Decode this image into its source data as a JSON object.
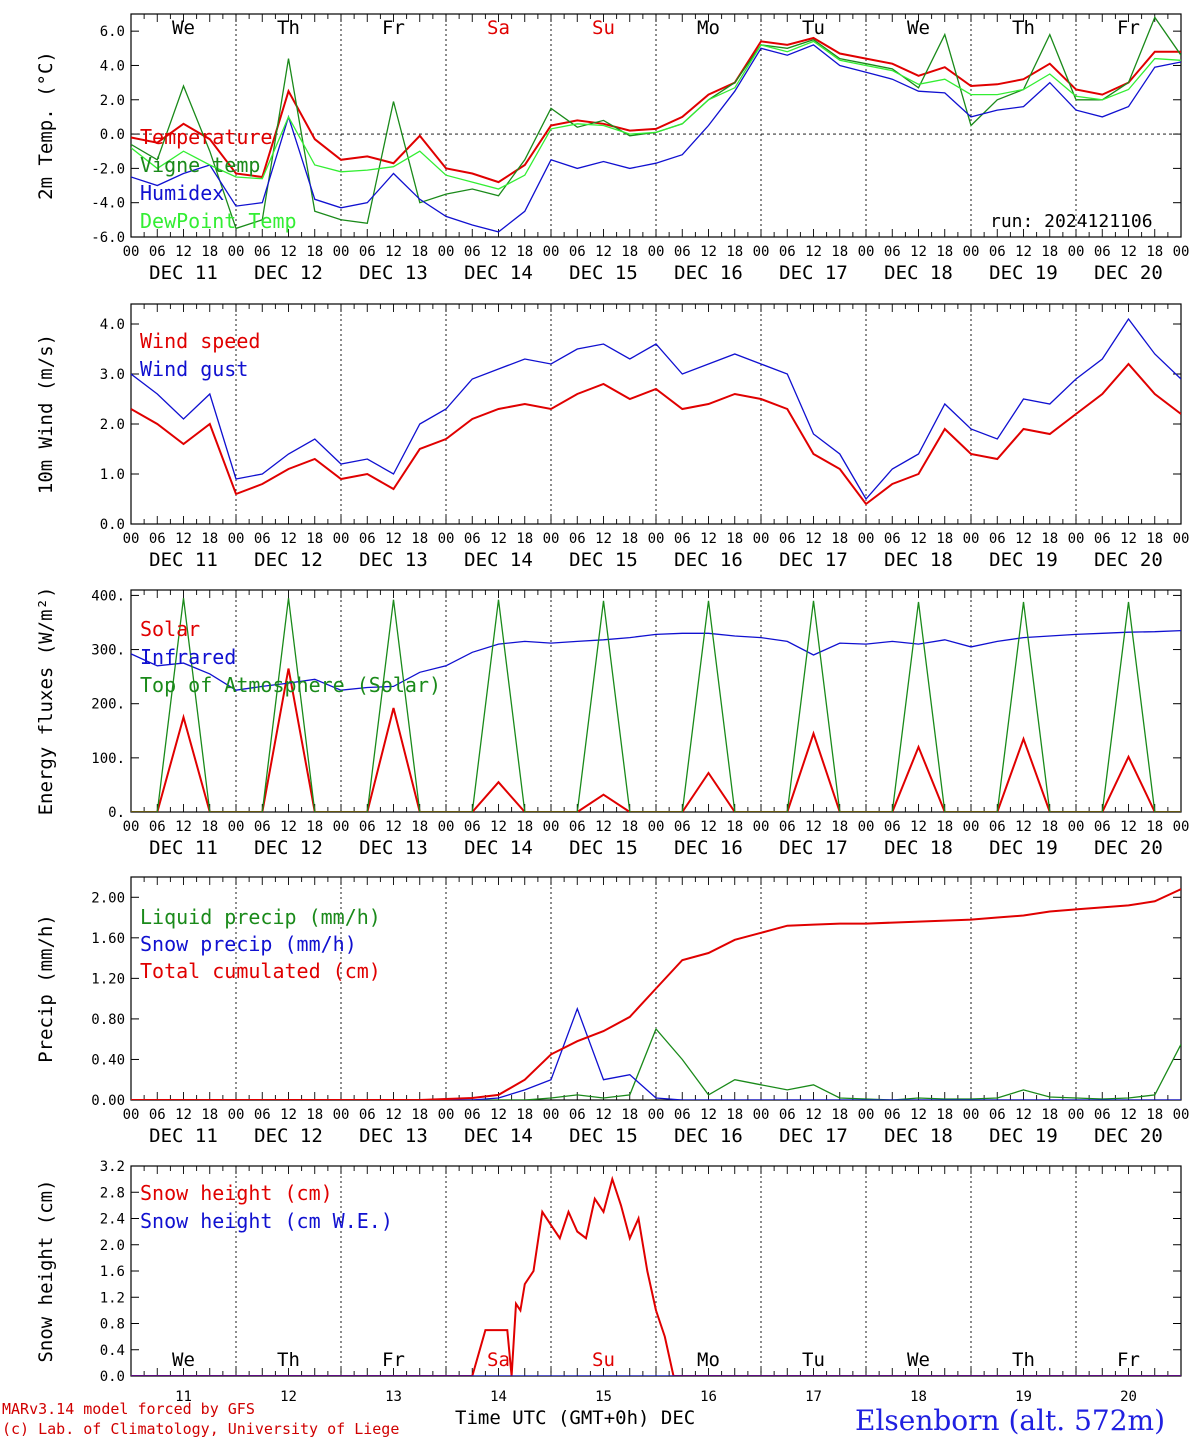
{
  "colors": {
    "red": "#e00000",
    "green": "#1a8a1a",
    "blue": "#1010d0",
    "light_green": "#33ee33",
    "weekend": "#e00000"
  },
  "days": {
    "weekday_labels": [
      "We",
      "Th",
      "Fr",
      "Sa",
      "Su",
      "Mo",
      "Tu",
      "We",
      "Th",
      "Fr"
    ],
    "weekend_flags": [
      false,
      false,
      false,
      true,
      true,
      false,
      false,
      false,
      false,
      false
    ],
    "date_labels": [
      "DEC 11",
      "DEC 12",
      "DEC 13",
      "DEC 14",
      "DEC 15",
      "DEC 16",
      "DEC 17",
      "DEC 18",
      "DEC 19",
      "DEC 20"
    ],
    "hour_labels": [
      "00",
      "06",
      "12",
      "18"
    ],
    "end_hour_label": "00",
    "day_numbers": [
      "11",
      "12",
      "13",
      "14",
      "15",
      "16",
      "17",
      "18",
      "19",
      "20"
    ]
  },
  "run_label": "run: 2024121106",
  "footer": {
    "model": "MARv3.14 model forced by GFS",
    "lab": "(c) Lab. of Climatology, University of Liege",
    "time_axis": "Time UTC (GMT+0h) DEC",
    "station": "Elsenborn (alt. 572m)"
  },
  "chart_data": [
    {
      "type": "line",
      "ylabel": "2m Temp. (°C)",
      "ylim": [
        -6,
        7
      ],
      "yticks": [
        "6.0",
        "4.0",
        "2.0",
        "0.0",
        "-2.0",
        "-4.0",
        "-6.0"
      ],
      "ytick_values": [
        6,
        4,
        2,
        0,
        -2,
        -4,
        -6
      ],
      "zero_line": true,
      "x": [
        0,
        6,
        12,
        18,
        24,
        30,
        36,
        42,
        48,
        54,
        60,
        66,
        72,
        78,
        84,
        90,
        96,
        102,
        108,
        114,
        120,
        126,
        132,
        138,
        144,
        150,
        156,
        162,
        168,
        174,
        180,
        186,
        192,
        198,
        204,
        210,
        216,
        222,
        228,
        234,
        240
      ],
      "series": [
        {
          "name": "Temperature",
          "color": "red",
          "values": [
            -0.2,
            -0.5,
            0.6,
            -0.3,
            -2.3,
            -2.5,
            2.5,
            -0.3,
            -1.5,
            -1.3,
            -1.7,
            -0.1,
            -2.0,
            -2.3,
            -2.8,
            -1.8,
            0.5,
            0.8,
            0.6,
            0.2,
            0.3,
            1.0,
            2.3,
            3.0,
            5.4,
            5.2,
            5.6,
            4.7,
            4.4,
            4.1,
            3.4,
            3.9,
            2.8,
            2.9,
            3.2,
            4.1,
            2.6,
            2.3,
            3.0,
            4.8,
            4.8
          ]
        },
        {
          "name": "Vigne temp",
          "color": "green",
          "values": [
            -0.6,
            -1.5,
            2.8,
            -1.0,
            -5.5,
            -5.0,
            4.4,
            -4.5,
            -5.0,
            -5.2,
            1.9,
            -4.0,
            -3.5,
            -3.2,
            -3.6,
            -1.5,
            1.5,
            0.4,
            0.8,
            -0.1,
            0.1,
            0.6,
            2.0,
            3.0,
            5.2,
            5.0,
            5.5,
            4.4,
            4.1,
            3.8,
            2.7,
            5.8,
            0.5,
            2.0,
            2.6,
            5.8,
            2.0,
            2.0,
            3.0,
            6.8,
            4.6
          ]
        },
        {
          "name": "Humidex",
          "color": "blue",
          "values": [
            -2.5,
            -3.0,
            -2.3,
            -1.8,
            -4.2,
            -4.0,
            1.0,
            -3.8,
            -4.3,
            -4.0,
            -2.3,
            -3.8,
            -4.8,
            -5.3,
            -5.7,
            -4.5,
            -1.5,
            -2.0,
            -1.6,
            -2.0,
            -1.7,
            -1.2,
            0.5,
            2.5,
            5.0,
            4.6,
            5.2,
            4.0,
            3.6,
            3.2,
            2.5,
            2.4,
            1.0,
            1.4,
            1.6,
            3.0,
            1.4,
            1.0,
            1.6,
            3.9,
            4.2
          ]
        },
        {
          "name": "DewPoint Temp",
          "color": "light_green",
          "values": [
            -0.8,
            -2.0,
            -1.0,
            -1.8,
            -2.5,
            -2.6,
            1.0,
            -1.8,
            -2.2,
            -2.1,
            -1.9,
            -1.0,
            -2.4,
            -2.8,
            -3.2,
            -2.4,
            0.3,
            0.6,
            0.5,
            0.0,
            0.1,
            0.6,
            2.0,
            2.7,
            5.2,
            4.8,
            5.4,
            4.3,
            4.0,
            3.7,
            2.9,
            3.2,
            2.3,
            2.3,
            2.6,
            3.5,
            2.2,
            2.0,
            2.6,
            4.4,
            4.3
          ]
        }
      ]
    },
    {
      "type": "line",
      "ylabel": "10m Wind (m/s)",
      "ylim": [
        0,
        4.4
      ],
      "yticks": [
        "4.0",
        "3.0",
        "2.0",
        "1.0",
        "0.0"
      ],
      "ytick_values": [
        4,
        3,
        2,
        1,
        0
      ],
      "x": [
        0,
        6,
        12,
        18,
        24,
        30,
        36,
        42,
        48,
        54,
        60,
        66,
        72,
        78,
        84,
        90,
        96,
        102,
        108,
        114,
        120,
        126,
        132,
        138,
        144,
        150,
        156,
        162,
        168,
        174,
        180,
        186,
        192,
        198,
        204,
        210,
        216,
        222,
        228,
        234,
        240
      ],
      "series": [
        {
          "name": "Wind speed",
          "color": "red",
          "values": [
            2.3,
            2.0,
            1.6,
            2.0,
            0.6,
            0.8,
            1.1,
            1.3,
            0.9,
            1.0,
            0.7,
            1.5,
            1.7,
            2.1,
            2.3,
            2.4,
            2.3,
            2.6,
            2.8,
            2.5,
            2.7,
            2.3,
            2.4,
            2.6,
            2.5,
            2.3,
            1.4,
            1.1,
            0.4,
            0.8,
            1.0,
            1.9,
            1.4,
            1.3,
            1.9,
            1.8,
            2.2,
            2.6,
            3.2,
            2.6,
            2.2
          ]
        },
        {
          "name": "Wind gust",
          "color": "blue",
          "values": [
            3.0,
            2.6,
            2.1,
            2.6,
            0.9,
            1.0,
            1.4,
            1.7,
            1.2,
            1.3,
            1.0,
            2.0,
            2.3,
            2.9,
            3.1,
            3.3,
            3.2,
            3.5,
            3.6,
            3.3,
            3.6,
            3.0,
            3.2,
            3.4,
            3.2,
            3.0,
            1.8,
            1.4,
            0.5,
            1.1,
            1.4,
            2.4,
            1.9,
            1.7,
            2.5,
            2.4,
            2.9,
            3.3,
            4.1,
            3.4,
            2.9
          ]
        }
      ]
    },
    {
      "type": "line",
      "ylabel": "Energy fluxes (W/m²)",
      "ylim": [
        0,
        410
      ],
      "yticks": [
        "400.",
        "300.",
        "200.",
        "100.",
        "0."
      ],
      "ytick_values": [
        400,
        300,
        200,
        100,
        0
      ],
      "x": [
        0,
        6,
        12,
        18,
        24,
        30,
        36,
        42,
        48,
        54,
        60,
        66,
        72,
        78,
        84,
        90,
        96,
        102,
        108,
        114,
        120,
        126,
        132,
        138,
        144,
        150,
        156,
        162,
        168,
        174,
        180,
        186,
        192,
        198,
        204,
        210,
        216,
        222,
        228,
        234,
        240
      ],
      "series": [
        {
          "name": "Solar",
          "color": "red",
          "values": [
            0,
            0,
            175,
            0,
            0,
            0,
            265,
            0,
            0,
            0,
            192,
            0,
            0,
            0,
            55,
            0,
            0,
            0,
            32,
            0,
            0,
            0,
            72,
            0,
            0,
            0,
            145,
            0,
            0,
            0,
            120,
            0,
            0,
            0,
            135,
            0,
            0,
            0,
            102,
            0,
            0
          ]
        },
        {
          "name": "Infrared",
          "color": "blue",
          "values": [
            292,
            270,
            275,
            255,
            225,
            232,
            238,
            245,
            225,
            230,
            232,
            258,
            270,
            295,
            310,
            315,
            312,
            315,
            318,
            322,
            328,
            330,
            330,
            325,
            322,
            315,
            290,
            312,
            310,
            315,
            310,
            318,
            305,
            315,
            322,
            325,
            328,
            330,
            332,
            333,
            335
          ]
        },
        {
          "name": "Top of Atmosphere (Solar)",
          "color": "green",
          "values": [
            0,
            0,
            395,
            0,
            0,
            0,
            395,
            0,
            0,
            0,
            392,
            0,
            0,
            0,
            392,
            0,
            0,
            0,
            390,
            0,
            0,
            0,
            390,
            0,
            0,
            0,
            390,
            0,
            0,
            0,
            388,
            0,
            0,
            0,
            388,
            0,
            0,
            0,
            388,
            0,
            0
          ]
        }
      ]
    },
    {
      "type": "line",
      "ylabel": "Precip (mm/h)",
      "ylim": [
        0,
        2.2
      ],
      "yticks": [
        "2.00",
        "1.60",
        "1.20",
        "0.80",
        "0.40",
        "0.00"
      ],
      "ytick_values": [
        2.0,
        1.6,
        1.2,
        0.8,
        0.4,
        0.0
      ],
      "x": [
        0,
        6,
        12,
        18,
        24,
        30,
        36,
        42,
        48,
        54,
        60,
        66,
        72,
        78,
        84,
        90,
        96,
        102,
        108,
        114,
        120,
        126,
        132,
        138,
        144,
        150,
        156,
        162,
        168,
        174,
        180,
        186,
        192,
        198,
        204,
        210,
        216,
        222,
        228,
        234,
        240
      ],
      "series": [
        {
          "name": "Liquid precip (mm/h)",
          "color": "green",
          "values": [
            0,
            0,
            0,
            0,
            0,
            0,
            0,
            0,
            0,
            0,
            0,
            0,
            0,
            0,
            0,
            0,
            0.02,
            0.05,
            0.02,
            0.05,
            0.7,
            0.4,
            0.05,
            0.2,
            0.15,
            0.1,
            0.15,
            0.02,
            0.01,
            0,
            0.02,
            0.01,
            0.01,
            0.02,
            0.1,
            0.03,
            0.02,
            0.01,
            0.02,
            0.05,
            0.55
          ]
        },
        {
          "name": "Snow precip (mm/h)",
          "color": "blue",
          "values": [
            0,
            0,
            0,
            0,
            0,
            0,
            0,
            0,
            0,
            0,
            0,
            0,
            0,
            0,
            0.02,
            0.1,
            0.2,
            0.9,
            0.2,
            0.25,
            0.02,
            0,
            0,
            0,
            0,
            0,
            0,
            0,
            0,
            0,
            0,
            0,
            0,
            0,
            0,
            0,
            0,
            0,
            0,
            0,
            0
          ]
        },
        {
          "name": "Total cumulated (cm)",
          "color": "red",
          "values": [
            0,
            0,
            0,
            0,
            0,
            0,
            0,
            0,
            0,
            0,
            0,
            0,
            0.01,
            0.02,
            0.05,
            0.2,
            0.45,
            0.58,
            0.68,
            0.82,
            1.1,
            1.38,
            1.45,
            1.58,
            1.65,
            1.72,
            1.73,
            1.74,
            1.74,
            1.75,
            1.76,
            1.77,
            1.78,
            1.8,
            1.82,
            1.86,
            1.88,
            1.9,
            1.92,
            1.96,
            2.08
          ]
        }
      ]
    },
    {
      "type": "line",
      "ylabel": "Snow height (cm)",
      "ylim": [
        0,
        3.2
      ],
      "yticks": [
        "3.2",
        "2.8",
        "2.4",
        "2.0",
        "1.6",
        "1.2",
        "0.8",
        "0.4",
        "0.0"
      ],
      "ytick_values": [
        3.2,
        2.8,
        2.4,
        2.0,
        1.6,
        1.2,
        0.8,
        0.4,
        0.0
      ],
      "x": [
        0,
        6,
        12,
        18,
        24,
        30,
        36,
        42,
        48,
        54,
        60,
        66,
        72,
        78,
        81,
        84,
        86,
        87,
        88,
        89,
        90,
        92,
        94,
        96,
        98,
        100,
        102,
        104,
        106,
        108,
        110,
        112,
        114,
        116,
        118,
        120,
        122,
        124,
        126,
        132,
        240
      ],
      "series": [
        {
          "name": "Snow height (cm)",
          "color": "red",
          "values": [
            0,
            0,
            0,
            0,
            0,
            0,
            0,
            0,
            0,
            0,
            0,
            0,
            0,
            0,
            0.7,
            0.7,
            0.7,
            0.0,
            1.1,
            1.0,
            1.4,
            1.6,
            2.5,
            2.3,
            2.1,
            2.5,
            2.2,
            2.1,
            2.7,
            2.5,
            3.0,
            2.6,
            2.1,
            2.4,
            1.6,
            1.0,
            0.6,
            0.0,
            0.0,
            0.0,
            0.0
          ]
        },
        {
          "name": "Snow height (cm W.E.)",
          "color": "blue",
          "values": [
            0,
            0,
            0,
            0,
            0,
            0,
            0,
            0,
            0,
            0,
            0,
            0,
            0,
            0,
            0,
            0,
            0,
            0,
            0,
            0,
            0,
            0,
            0,
            0,
            0,
            0,
            0,
            0,
            0,
            0,
            0,
            0,
            0,
            0,
            0,
            0,
            0,
            0,
            0,
            0,
            0
          ]
        }
      ]
    }
  ]
}
